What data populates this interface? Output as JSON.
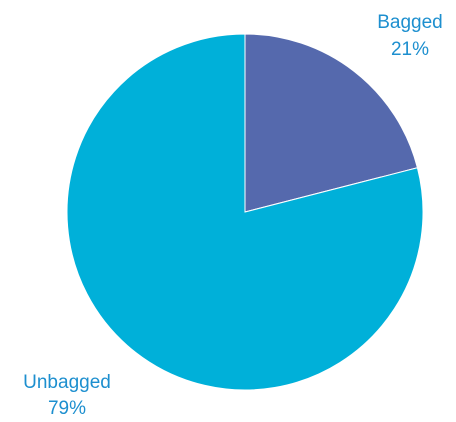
{
  "chart_data": {
    "type": "pie",
    "title": "",
    "slices": [
      {
        "label": "Bagged",
        "percent_label": "21%",
        "value": 21,
        "color": "#5569ad"
      },
      {
        "label": "Unbagged",
        "percent_label": "79%",
        "value": 79,
        "color": "#00b0d9"
      }
    ],
    "start_angle_deg": 0,
    "direction": "clockwise",
    "label_color": "#1d8fcf",
    "legend": "none"
  }
}
